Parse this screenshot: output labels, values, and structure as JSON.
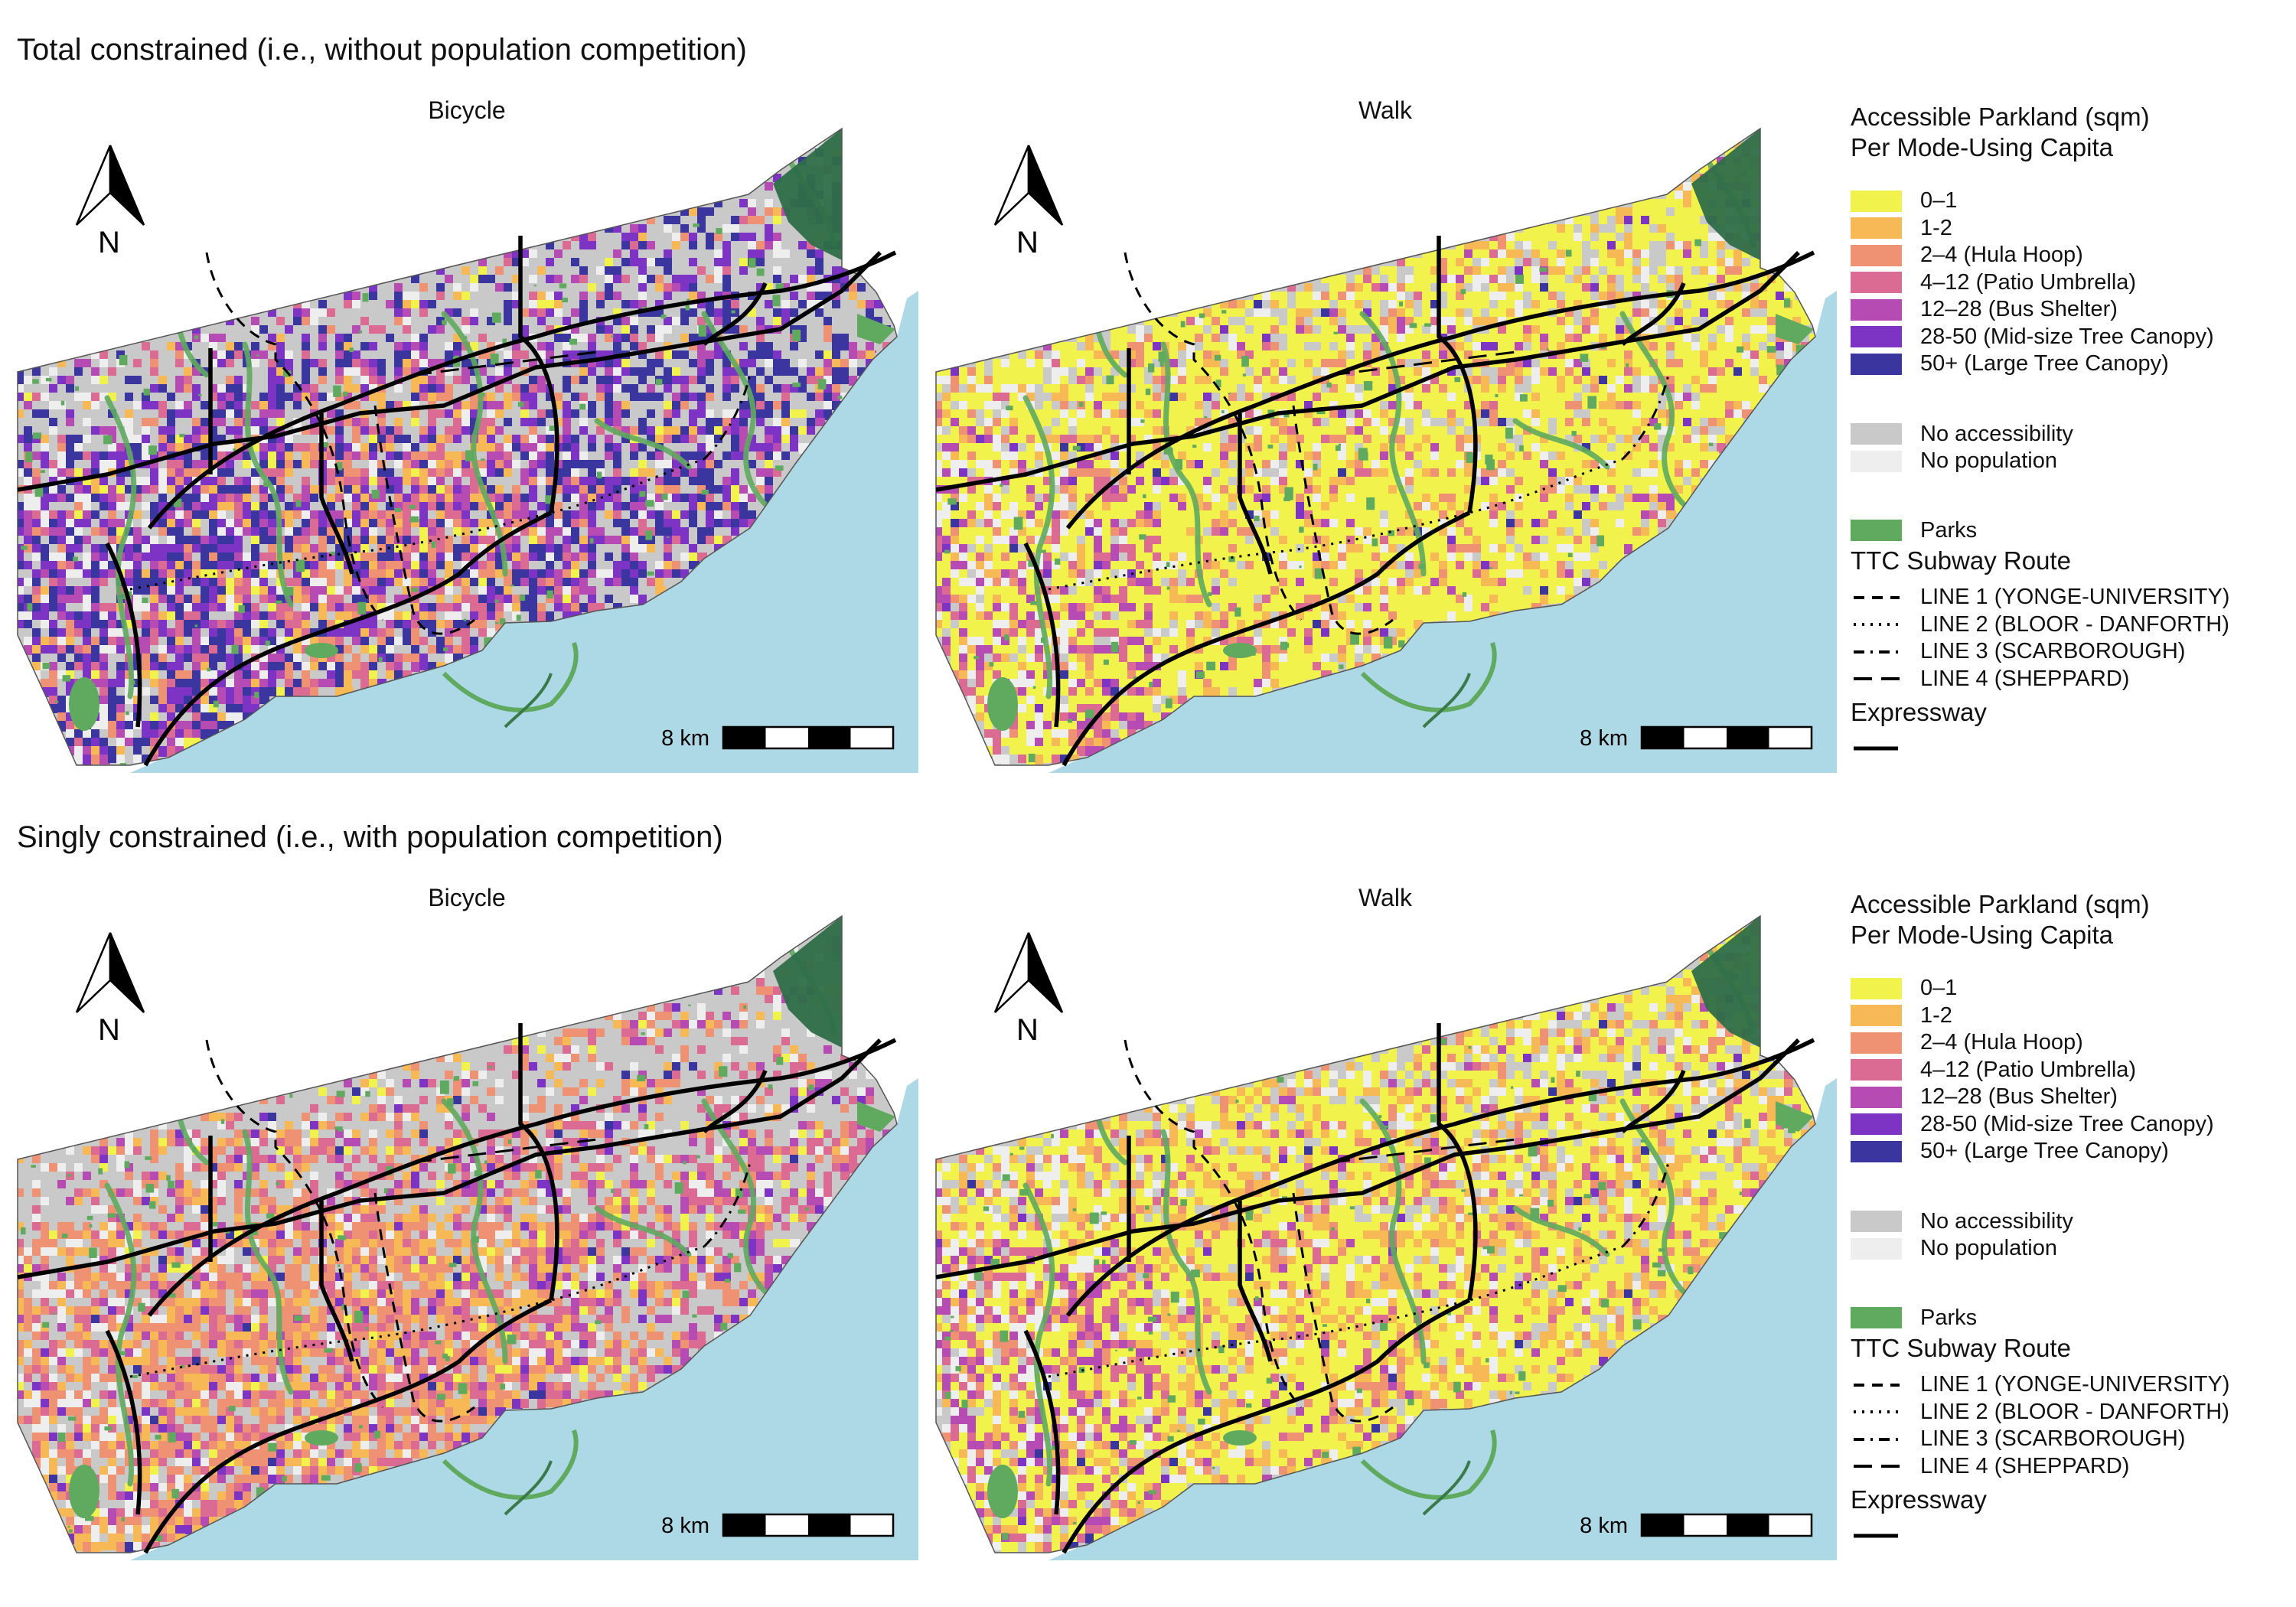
{
  "sections": [
    {
      "title": "Total constrained (i.e., without population competition)",
      "panels": [
        {
          "title": "Bicycle",
          "scheme": "bike_total"
        },
        {
          "title": "Walk",
          "scheme": "walk_total"
        }
      ]
    },
    {
      "title": "Singly constrained (i.e., with population competition)",
      "panels": [
        {
          "title": "Bicycle",
          "scheme": "bike_single"
        },
        {
          "title": "Walk",
          "scheme": "walk_single"
        }
      ]
    }
  ],
  "north_arrow_label": "N",
  "scale_bar_label": "8 km",
  "legend": {
    "title_line1": "Accessible Parkland (sqm)",
    "title_line2": "Per Mode-Using Capita",
    "classes": [
      {
        "label": "0–1",
        "color": "#f2f24d"
      },
      {
        "label": "1-2",
        "color": "#f7b955"
      },
      {
        "label": "2–4 (Hula Hoop)",
        "color": "#ef9173"
      },
      {
        "label": "4–12 (Patio Umbrella)",
        "color": "#db6b92"
      },
      {
        "label": "12–28 (Bus Shelter)",
        "color": "#b64cb3"
      },
      {
        "label": "28-50 (Mid-size Tree Canopy)",
        "color": "#7d33c4"
      },
      {
        "label": "50+ (Large Tree Canopy)",
        "color": "#3b35a0"
      }
    ],
    "no_accessibility": {
      "label": "No accessibility",
      "color": "#c9c9c9"
    },
    "no_population": {
      "label": "No population",
      "color": "#eeeeee"
    },
    "parks": {
      "label": "Parks",
      "color": "#5faa5f"
    },
    "subway_title": "TTC Subway Route",
    "subway_lines": [
      {
        "label": "LINE 1 (YONGE-UNIVERSITY)",
        "dash": "14 10"
      },
      {
        "label": "LINE 2 (BLOOR - DANFORTH)",
        "dash": "3 8"
      },
      {
        "label": "LINE 3 (SCARBOROUGH)",
        "dash": "14 8 3 8"
      },
      {
        "label": "LINE 4 (SHEPPARD)",
        "dash": "24 12"
      }
    ],
    "expressway_title": "Expressway"
  },
  "colors": {
    "water": "#add8e6",
    "land_base": "#c9c9c9",
    "park": "#5faa5f",
    "park_dark": "#2e6e48",
    "no_population": "#eeeeee"
  }
}
